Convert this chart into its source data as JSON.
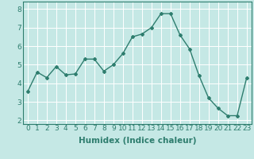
{
  "x": [
    0,
    1,
    2,
    3,
    4,
    5,
    6,
    7,
    8,
    9,
    10,
    11,
    12,
    13,
    14,
    15,
    16,
    17,
    18,
    19,
    20,
    21,
    22,
    23
  ],
  "y": [
    3.55,
    4.6,
    4.3,
    4.9,
    4.45,
    4.5,
    5.3,
    5.3,
    4.65,
    5.0,
    5.6,
    6.5,
    6.65,
    7.0,
    7.75,
    7.75,
    6.6,
    5.85,
    4.4,
    3.2,
    2.65,
    2.25,
    2.25,
    4.3
  ],
  "line_color": "#2e7d6e",
  "bg_color": "#c5e8e5",
  "grid_color": "#ffffff",
  "xlabel": "Humidex (Indice chaleur)",
  "ylim": [
    1.8,
    8.4
  ],
  "xlim": [
    -0.5,
    23.5
  ],
  "yticks": [
    2,
    3,
    4,
    5,
    6,
    7,
    8
  ],
  "xticks": [
    0,
    1,
    2,
    3,
    4,
    5,
    6,
    7,
    8,
    9,
    10,
    11,
    12,
    13,
    14,
    15,
    16,
    17,
    18,
    19,
    20,
    21,
    22,
    23
  ],
  "xlabel_fontsize": 7.5,
  "tick_fontsize": 6.5,
  "marker": "D",
  "marker_size": 2.0,
  "linewidth": 1.0
}
